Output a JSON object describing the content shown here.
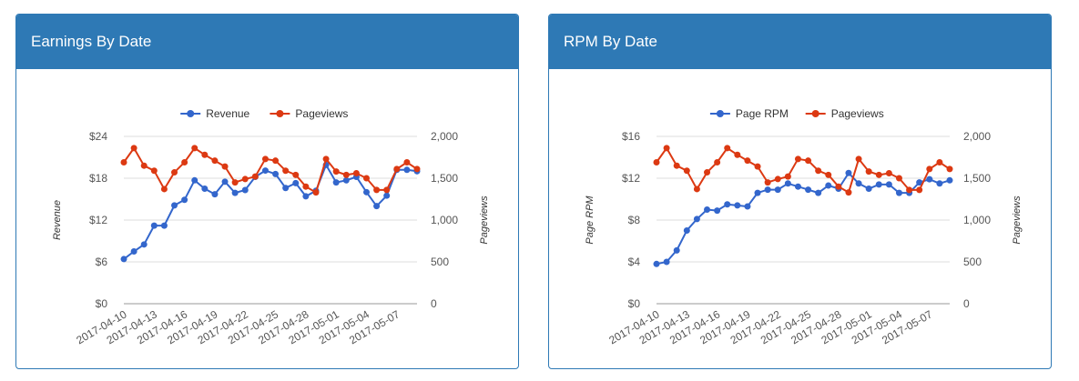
{
  "panels": [
    {
      "title": "Earnings By Date"
    },
    {
      "title": "RPM By Date"
    }
  ],
  "colors": {
    "blue": "#3366cc",
    "red": "#dc3912",
    "header": "#2e79b5"
  },
  "chart_data": [
    {
      "type": "line",
      "title": "Earnings By Date",
      "x": [
        "2017-04-10",
        "2017-04-11",
        "2017-04-12",
        "2017-04-13",
        "2017-04-14",
        "2017-04-15",
        "2017-04-16",
        "2017-04-17",
        "2017-04-18",
        "2017-04-19",
        "2017-04-20",
        "2017-04-21",
        "2017-04-22",
        "2017-04-23",
        "2017-04-24",
        "2017-04-25",
        "2017-04-26",
        "2017-04-27",
        "2017-04-28",
        "2017-04-29",
        "2017-04-30",
        "2017-05-01",
        "2017-05-02",
        "2017-05-03",
        "2017-05-04",
        "2017-05-05",
        "2017-05-06",
        "2017-05-07",
        "2017-05-08",
        "2017-05-09"
      ],
      "x_tick_labels": [
        "2017-04-10",
        "2017-04-13",
        "2017-04-16",
        "2017-04-19",
        "2017-04-22",
        "2017-04-25",
        "2017-04-28",
        "2017-05-01",
        "2017-05-04",
        "2017-05-07"
      ],
      "legend": [
        "Revenue",
        "Pageviews"
      ],
      "legend_position": "top",
      "grid": true,
      "left_axis": {
        "label": "Revenue",
        "range": [
          0,
          24
        ],
        "ticks": [
          "$0",
          "$6",
          "$12",
          "$18",
          "$24"
        ]
      },
      "right_axis": {
        "label": "Pageviews",
        "range": [
          0,
          2000
        ],
        "ticks": [
          "0",
          "500",
          "1,000",
          "1,500",
          "2,000"
        ]
      },
      "series": [
        {
          "name": "Revenue",
          "axis": "left",
          "color": "#3366cc",
          "values": [
            6.4,
            7.5,
            8.5,
            11.2,
            11.2,
            14.1,
            14.9,
            17.7,
            16.5,
            15.7,
            17.5,
            15.9,
            16.3,
            18.2,
            19.1,
            18.6,
            16.6,
            17.3,
            15.4,
            16.2,
            19.9,
            17.4,
            17.7,
            18.2,
            16.0,
            14.0,
            15.5,
            19.2,
            19.2,
            19.0
          ]
        },
        {
          "name": "Pageviews",
          "axis": "right",
          "color": "#dc3912",
          "values": [
            1690,
            1860,
            1650,
            1590,
            1370,
            1570,
            1690,
            1860,
            1780,
            1710,
            1640,
            1450,
            1490,
            1520,
            1730,
            1710,
            1590,
            1540,
            1400,
            1330,
            1730,
            1580,
            1540,
            1560,
            1500,
            1360,
            1360,
            1610,
            1690,
            1610
          ]
        }
      ]
    },
    {
      "type": "line",
      "title": "RPM By Date",
      "x": [
        "2017-04-10",
        "2017-04-11",
        "2017-04-12",
        "2017-04-13",
        "2017-04-14",
        "2017-04-15",
        "2017-04-16",
        "2017-04-17",
        "2017-04-18",
        "2017-04-19",
        "2017-04-20",
        "2017-04-21",
        "2017-04-22",
        "2017-04-23",
        "2017-04-24",
        "2017-04-25",
        "2017-04-26",
        "2017-04-27",
        "2017-04-28",
        "2017-04-29",
        "2017-04-30",
        "2017-05-01",
        "2017-05-02",
        "2017-05-03",
        "2017-05-04",
        "2017-05-05",
        "2017-05-06",
        "2017-05-07",
        "2017-05-08",
        "2017-05-09"
      ],
      "x_tick_labels": [
        "2017-04-10",
        "2017-04-13",
        "2017-04-16",
        "2017-04-19",
        "2017-04-22",
        "2017-04-25",
        "2017-04-28",
        "2017-05-01",
        "2017-05-04",
        "2017-05-07"
      ],
      "legend": [
        "Page RPM",
        "Pageviews"
      ],
      "legend_position": "top",
      "grid": true,
      "left_axis": {
        "label": "Page RPM",
        "range": [
          0,
          16
        ],
        "ticks": [
          "$0",
          "$4",
          "$8",
          "$12",
          "$16"
        ]
      },
      "right_axis": {
        "label": "Pageviews",
        "range": [
          0,
          2000
        ],
        "ticks": [
          "0",
          "500",
          "1,000",
          "1,500",
          "2,000"
        ]
      },
      "series": [
        {
          "name": "Page RPM",
          "axis": "left",
          "color": "#3366cc",
          "values": [
            3.8,
            4.0,
            5.1,
            7.0,
            8.1,
            9.0,
            8.9,
            9.5,
            9.4,
            9.3,
            10.6,
            10.9,
            10.9,
            11.5,
            11.2,
            10.9,
            10.6,
            11.3,
            11.0,
            12.5,
            11.5,
            11.0,
            11.4,
            11.4,
            10.6,
            10.6,
            11.6,
            11.9,
            11.5,
            11.8
          ]
        },
        {
          "name": "Pageviews",
          "axis": "right",
          "color": "#dc3912",
          "values": [
            1690,
            1860,
            1650,
            1590,
            1370,
            1570,
            1690,
            1860,
            1780,
            1710,
            1640,
            1450,
            1490,
            1520,
            1730,
            1710,
            1590,
            1540,
            1400,
            1330,
            1730,
            1580,
            1540,
            1560,
            1500,
            1360,
            1360,
            1610,
            1690,
            1610
          ]
        }
      ]
    }
  ]
}
